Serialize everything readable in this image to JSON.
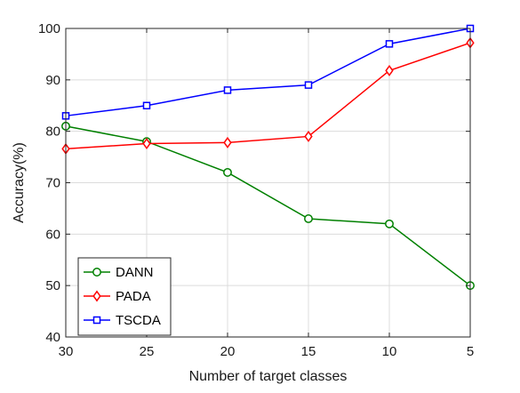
{
  "chart_data": {
    "type": "line",
    "title": "",
    "xlabel": "Number of target classes",
    "ylabel": "Accuracy(%)",
    "x": [
      30,
      25,
      20,
      15,
      10,
      5
    ],
    "x_reversed": true,
    "xlim": [
      30,
      5
    ],
    "ylim": [
      40,
      100
    ],
    "yticks": [
      40,
      50,
      60,
      70,
      80,
      90,
      100
    ],
    "xticks": [
      30,
      25,
      20,
      15,
      10,
      5
    ],
    "grid": true,
    "legend_position": "bottom-left",
    "series": [
      {
        "name": "DANN",
        "color": "#008000",
        "marker": "circle",
        "values": [
          81,
          78,
          72,
          63,
          62,
          50
        ]
      },
      {
        "name": "PADA",
        "color": "#ff0000",
        "marker": "diamond",
        "values": [
          76.6,
          77.6,
          77.8,
          79,
          91.8,
          97.2
        ]
      },
      {
        "name": "TSCDA",
        "color": "#0000ff",
        "marker": "square",
        "values": [
          83,
          85,
          88,
          89,
          97,
          100
        ]
      }
    ]
  }
}
